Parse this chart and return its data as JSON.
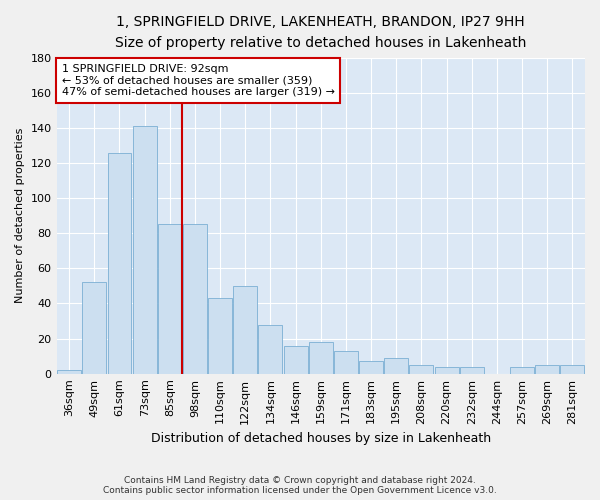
{
  "title1": "1, SPRINGFIELD DRIVE, LAKENHEATH, BRANDON, IP27 9HH",
  "title2": "Size of property relative to detached houses in Lakenheath",
  "xlabel": "Distribution of detached houses by size in Lakenheath",
  "ylabel": "Number of detached properties",
  "footer1": "Contains HM Land Registry data © Crown copyright and database right 2024.",
  "footer2": "Contains public sector information licensed under the Open Government Licence v3.0.",
  "categories": [
    "36sqm",
    "49sqm",
    "61sqm",
    "73sqm",
    "85sqm",
    "98sqm",
    "110sqm",
    "122sqm",
    "134sqm",
    "146sqm",
    "159sqm",
    "171sqm",
    "183sqm",
    "195sqm",
    "208sqm",
    "220sqm",
    "232sqm",
    "244sqm",
    "257sqm",
    "269sqm",
    "281sqm"
  ],
  "values": [
    2,
    52,
    126,
    141,
    85,
    85,
    43,
    50,
    28,
    16,
    18,
    13,
    7,
    9,
    5,
    4,
    4,
    0,
    4,
    5,
    5
  ],
  "bar_color": "#ccdff0",
  "bar_edge_color": "#7bafd4",
  "vline_x": 4.5,
  "vline_color": "#cc0000",
  "annotation_line1": "1 SPRINGFIELD DRIVE: 92sqm",
  "annotation_line2": "← 53% of detached houses are smaller (359)",
  "annotation_line3": "47% of semi-detached houses are larger (319) →",
  "annotation_box_color": "#cc0000",
  "ylim": [
    0,
    180
  ],
  "yticks": [
    0,
    20,
    40,
    60,
    80,
    100,
    120,
    140,
    160,
    180
  ],
  "background_color": "#dce8f5",
  "grid_color": "#ffffff",
  "title1_fontsize": 10,
  "title2_fontsize": 9.5,
  "xlabel_fontsize": 9,
  "ylabel_fontsize": 8,
  "tick_fontsize": 8,
  "ann_fontsize": 8
}
